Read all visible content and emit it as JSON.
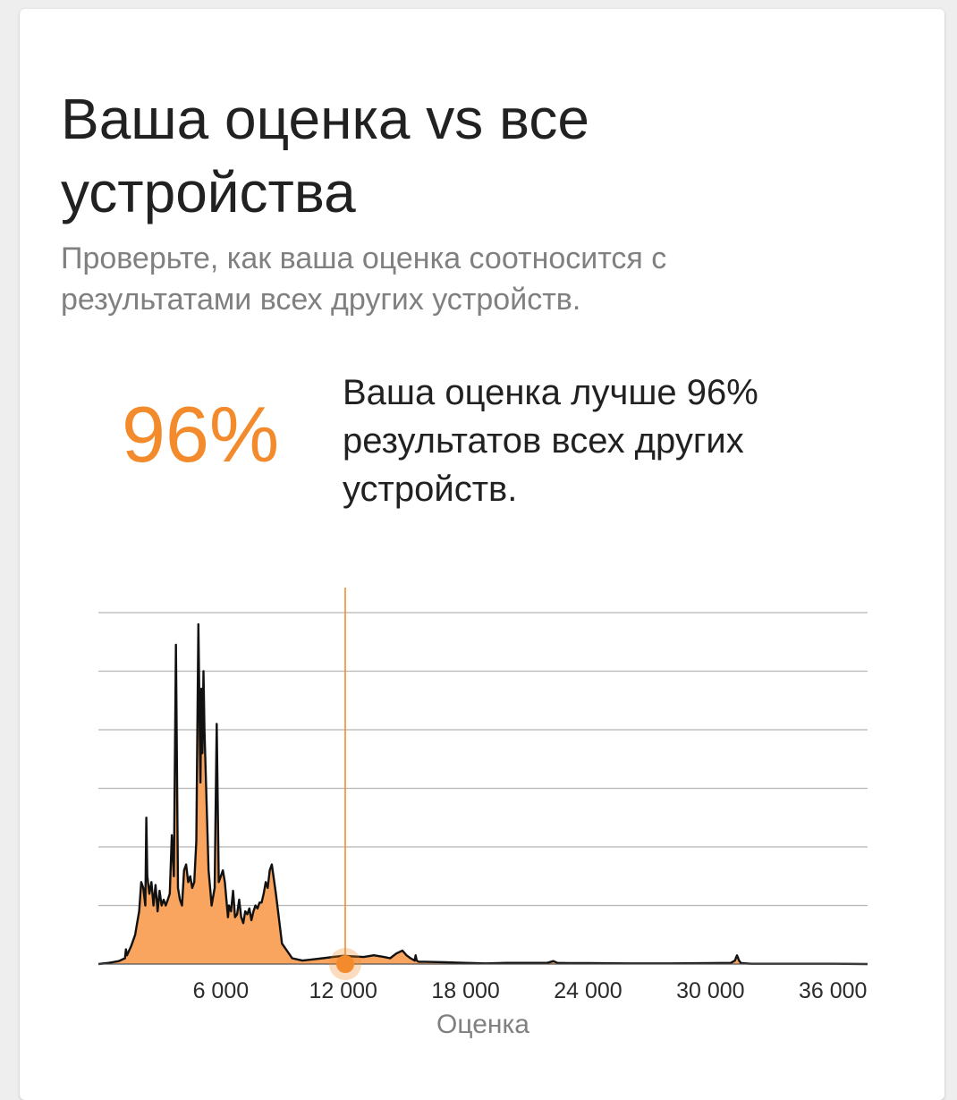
{
  "card": {
    "title": "Ваша оценка vs все устройства",
    "subtitle": "Проверьте, как ваша оценка соотносится с результатами всех других устройств."
  },
  "summary": {
    "percent": "96%",
    "text": "Ваша оценка лучше 96% результатов всех других устройств."
  },
  "colors": {
    "accent": "#f38b2c",
    "fill": "#f9a55f",
    "line": "#111111",
    "grid": "#b5b5b5"
  },
  "chart_data": {
    "type": "area",
    "xlabel": "Оценка",
    "ylabel": "",
    "x_ticks": [
      6000,
      12000,
      18000,
      24000,
      30000,
      36000
    ],
    "x_tick_labels": [
      "6 000",
      "12 000",
      "18 000",
      "24 000",
      "30 000",
      "36 000"
    ],
    "xlim": [
      0,
      37700
    ],
    "ylim": [
      0,
      6
    ],
    "y_gridlines": 6,
    "grid": true,
    "your_score": 12100,
    "series": [
      {
        "x": [
          0,
          500,
          1000,
          1300,
          1350,
          1400,
          1600,
          1800,
          1900,
          2000,
          2100,
          2200,
          2300,
          2350,
          2400,
          2500,
          2600,
          2700,
          2800,
          2900,
          3000,
          3100,
          3200,
          3300,
          3400,
          3500,
          3600,
          3700,
          3800,
          3900,
          4000,
          4100,
          4200,
          4300,
          4400,
          4500,
          4600,
          4700,
          4800,
          4900,
          5000,
          5050,
          5100,
          5150,
          5200,
          5300,
          5400,
          5500,
          5550,
          5600,
          5700,
          5800,
          5900,
          6000,
          6100,
          6200,
          6300,
          6350,
          6400,
          6500,
          6600,
          6700,
          6800,
          6900,
          7000,
          7100,
          7200,
          7300,
          7400,
          7500,
          7600,
          7700,
          7800,
          7900,
          8000,
          8100,
          8200,
          8300,
          8400,
          8500,
          8700,
          9000,
          9500,
          10000,
          10500,
          11000,
          11500,
          12000,
          12500,
          13000,
          13500,
          14000,
          14300,
          14600,
          14900,
          15100,
          15300,
          15500,
          15550,
          15600,
          15700,
          16000,
          17000,
          18000,
          19000,
          20000,
          21000,
          22000,
          22300,
          22500,
          23000,
          24000,
          26000,
          28000,
          30000,
          31000,
          31200,
          31300,
          31400,
          31500,
          32000,
          34000,
          36000,
          37700
        ],
        "y": [
          0.0,
          0.02,
          0.05,
          0.1,
          0.25,
          0.15,
          0.3,
          0.5,
          0.7,
          0.9,
          1.4,
          1.3,
          1.0,
          2.5,
          1.5,
          1.2,
          1.4,
          1.0,
          1.35,
          0.9,
          1.25,
          1.0,
          1.1,
          1.0,
          1.1,
          1.2,
          2.2,
          1.5,
          5.45,
          1.3,
          1.1,
          1.0,
          1.6,
          1.7,
          1.4,
          1.5,
          1.3,
          1.4,
          2.1,
          5.8,
          3.1,
          4.7,
          3.6,
          5.0,
          4.0,
          2.8,
          1.6,
          1.2,
          1.0,
          1.1,
          1.3,
          4.1,
          1.4,
          1.5,
          1.6,
          1.4,
          1.0,
          0.8,
          1.0,
          0.9,
          1.25,
          0.8,
          0.85,
          1.1,
          0.8,
          0.7,
          0.9,
          0.85,
          0.95,
          0.75,
          0.9,
          1.0,
          0.95,
          1.05,
          1.05,
          1.2,
          1.4,
          1.3,
          1.6,
          1.7,
          1.2,
          0.35,
          0.1,
          0.06,
          0.08,
          0.1,
          0.12,
          0.14,
          0.13,
          0.12,
          0.15,
          0.12,
          0.1,
          0.18,
          0.23,
          0.15,
          0.1,
          0.06,
          0.15,
          0.06,
          0.04,
          0.04,
          0.03,
          0.02,
          0.01,
          0.02,
          0.02,
          0.02,
          0.05,
          0.02,
          0.015,
          0.015,
          0.01,
          0.01,
          0.015,
          0.02,
          0.06,
          0.15,
          0.06,
          0.015,
          0.005,
          0.005,
          0.005,
          0.0
        ]
      }
    ]
  }
}
